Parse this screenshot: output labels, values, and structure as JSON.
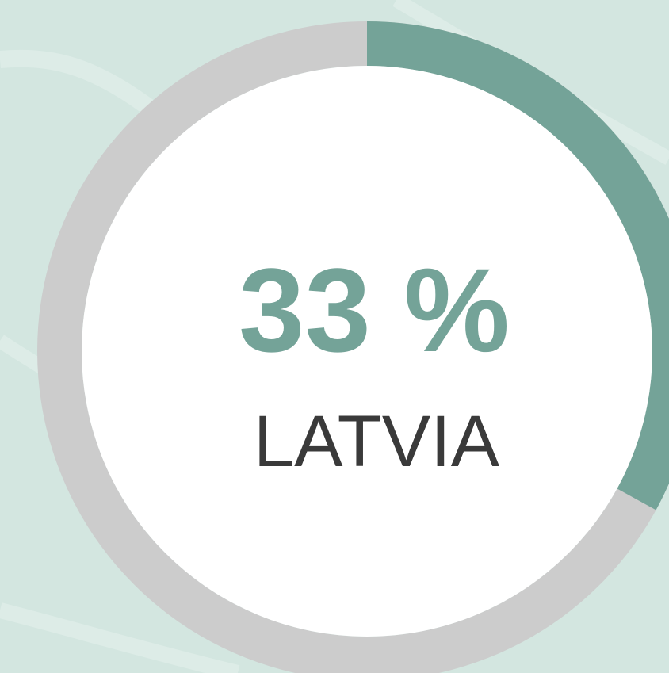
{
  "chart_data": {
    "type": "donut",
    "categories": [
      "LATVIA"
    ],
    "values": [
      33
    ],
    "value_labels": [
      "33 %"
    ],
    "color": "#74a398",
    "track_color": "#cccccc"
  }
}
